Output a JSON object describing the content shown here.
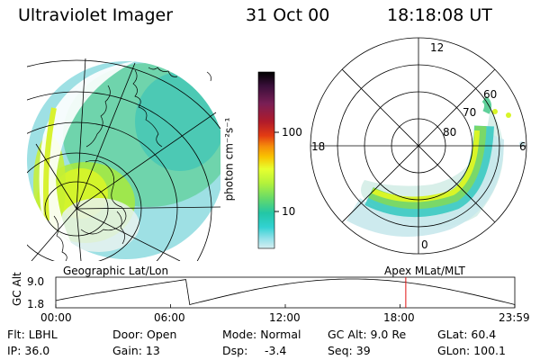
{
  "header": {
    "instrument": "Ultraviolet Imager",
    "date": "31 Oct 00",
    "time": "18:18:08 UT"
  },
  "colorbar": {
    "label": "photon cm⁻²s⁻¹",
    "ticks": [
      "100",
      "10"
    ],
    "colors": [
      "#000000",
      "#3a0f3a",
      "#7a1f55",
      "#b01b2b",
      "#e33b13",
      "#f58b0a",
      "#f9c200",
      "#e7ff2f",
      "#b4f23b",
      "#63d96b",
      "#22c6a6",
      "#32d2d2",
      "#8ee0e8",
      "#d5eef1"
    ]
  },
  "left_map": {
    "label": "Geographic Lat/Lon"
  },
  "right_map": {
    "label": "Apex  MLat/MLT",
    "mlt_labels": [
      "12",
      "18",
      "6",
      "0"
    ],
    "mlat_labels": [
      "60",
      "70",
      "80"
    ]
  },
  "altitude_plot": {
    "ylabel": "GC Alt",
    "yticks": [
      "9.0",
      "1.8"
    ],
    "xticks": [
      "00:00",
      "06:00",
      "12:00",
      "18:00",
      "23:59"
    ],
    "current_time_marker": "18:18",
    "marker_color": "#e01010"
  },
  "info": {
    "filter": "Flt: LBHL",
    "ip": "IP: 36.0",
    "door": "Door: Open",
    "gain": "Gain: 13",
    "mode": "Mode: Normal",
    "dsp_label": "Dsp:",
    "dsp_value": "-3.4",
    "gc_alt": "GC Alt: 9.0 Re",
    "seq": "Seq: 39",
    "glat": "GLat:  60.4",
    "glon": "GLon: 100.1"
  }
}
